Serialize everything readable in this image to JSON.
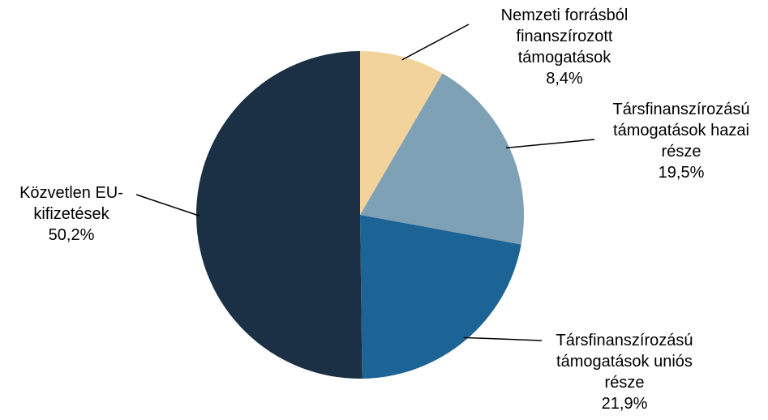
{
  "chart_data": {
    "type": "pie",
    "categories": [
      "Nemzeti forrásból finanszírozott támogatások",
      "Társfinanszírozású támogatások hazai része",
      "Társfinanszírozású támogatások uniós része",
      "Közvetlen EU-kifizetések"
    ],
    "values": [
      8.4,
      19.5,
      21.9,
      50.2
    ],
    "value_labels": [
      "8,4%",
      "19,5%",
      "21,9%",
      "50,2%"
    ],
    "colors": [
      "#f2d39b",
      "#7fa1b5",
      "#1d6496",
      "#1b3045"
    ]
  }
}
